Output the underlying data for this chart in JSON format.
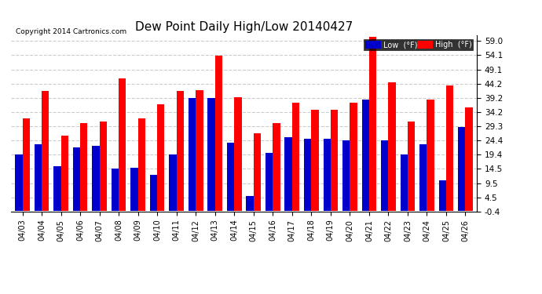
{
  "title": "Dew Point Daily High/Low 20140427",
  "categories": [
    "04/03",
    "04/04",
    "04/05",
    "04/06",
    "04/07",
    "04/08",
    "04/09",
    "04/10",
    "04/11",
    "04/12",
    "04/13",
    "04/14",
    "04/15",
    "04/16",
    "04/17",
    "04/18",
    "04/19",
    "04/20",
    "04/21",
    "04/22",
    "04/23",
    "04/24",
    "04/25",
    "04/26"
  ],
  "low_values": [
    19.4,
    23.0,
    15.5,
    22.0,
    22.5,
    14.5,
    15.0,
    12.5,
    19.5,
    39.2,
    39.2,
    23.5,
    5.0,
    20.0,
    25.5,
    25.0,
    25.0,
    24.5,
    38.5,
    24.5,
    19.5,
    23.0,
    10.5,
    29.0
  ],
  "high_values": [
    32.0,
    41.5,
    26.0,
    30.5,
    31.0,
    46.0,
    32.0,
    37.0,
    41.5,
    42.0,
    54.0,
    39.5,
    27.0,
    30.5,
    37.5,
    35.0,
    35.0,
    37.5,
    60.5,
    44.5,
    31.0,
    38.5,
    43.5,
    36.0
  ],
  "low_color": "#0000cc",
  "high_color": "#ff0000",
  "background_color": "#ffffff",
  "ytick_labels": [
    "-0.4",
    "4.5",
    "9.5",
    "14.5",
    "19.4",
    "24.4",
    "29.3",
    "34.2",
    "39.2",
    "44.2",
    "49.1",
    "54.1",
    "59.0"
  ],
  "ytick_values": [
    -0.4,
    4.5,
    9.5,
    14.5,
    19.4,
    24.4,
    29.3,
    34.2,
    39.2,
    44.2,
    49.1,
    54.1,
    59.0
  ],
  "ylim": [
    -0.4,
    61.0
  ],
  "grid_color": "#cccccc",
  "copyright_text": "Copyright 2014 Cartronics.com",
  "legend_low_label": "Low  (°F)",
  "legend_high_label": "High  (°F)",
  "legend_low_bg": "#0000cc",
  "legend_high_bg": "#ff0000"
}
